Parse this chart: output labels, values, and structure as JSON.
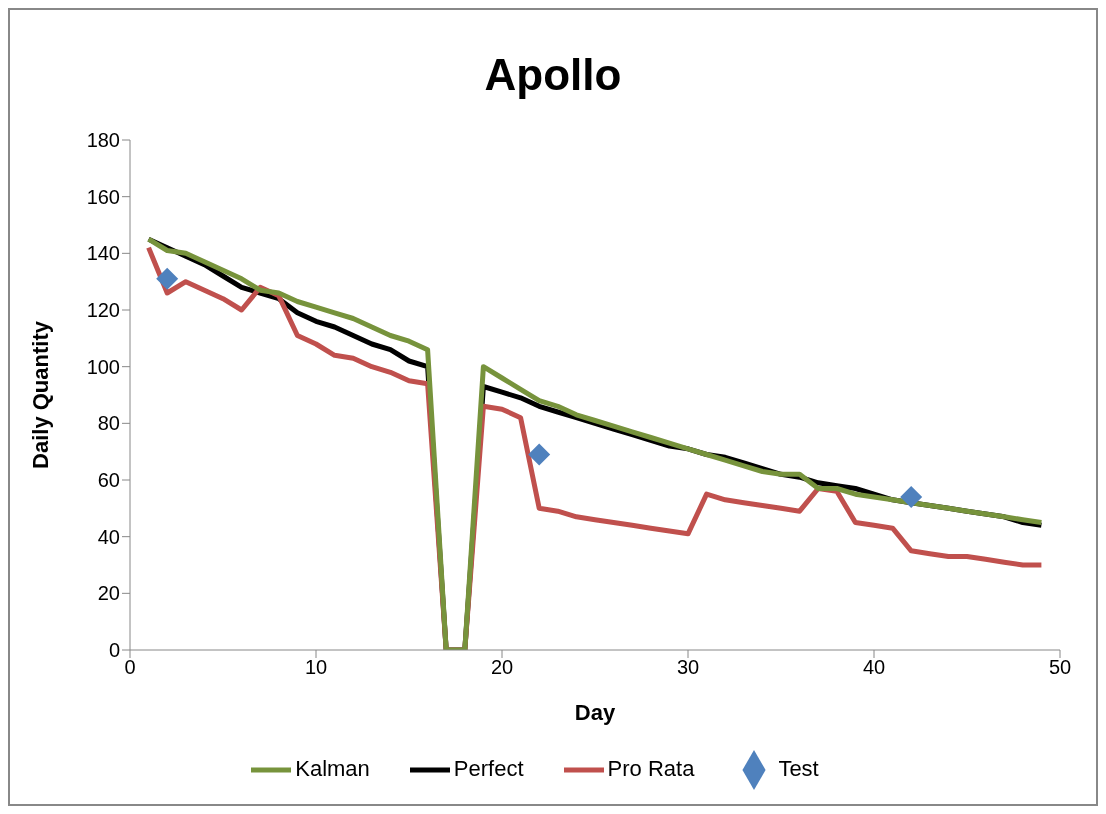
{
  "chart_data": {
    "type": "line",
    "title": "Apollo",
    "xlabel": "Day",
    "ylabel": "Daily Quantity",
    "x": [
      1,
      2,
      3,
      4,
      5,
      6,
      7,
      8,
      9,
      10,
      11,
      12,
      13,
      14,
      15,
      16,
      17,
      18,
      19,
      20,
      21,
      22,
      23,
      24,
      25,
      26,
      27,
      28,
      29,
      30,
      31,
      32,
      33,
      34,
      35,
      36,
      37,
      38,
      39,
      40,
      41,
      42,
      43,
      44,
      45,
      46,
      47,
      48,
      49
    ],
    "series": [
      {
        "name": "Perfect",
        "color": "#000000",
        "values": [
          145,
          142,
          139,
          136,
          132,
          128,
          126,
          124,
          119,
          116,
          114,
          111,
          108,
          106,
          102,
          100,
          0,
          0,
          93,
          91,
          89,
          86,
          84,
          82,
          80,
          78,
          76,
          74,
          72,
          71,
          69,
          68,
          66,
          64,
          62,
          61,
          59,
          58,
          57,
          55,
          53,
          52,
          51,
          50,
          49,
          48,
          47,
          45,
          44
        ]
      },
      {
        "name": "Pro Rata",
        "color": "#c0504d",
        "values": [
          142,
          126,
          130,
          127,
          124,
          120,
          128,
          125,
          111,
          108,
          104,
          103,
          100,
          98,
          95,
          94,
          0,
          0,
          86,
          85,
          82,
          50,
          49,
          47,
          46,
          45,
          44,
          43,
          42,
          41,
          55,
          53,
          52,
          51,
          50,
          49,
          57,
          56,
          45,
          44,
          43,
          35,
          34,
          33,
          33,
          32,
          31,
          30,
          30
        ]
      },
      {
        "name": "Kalman",
        "color": "#77933c",
        "values": [
          145,
          141,
          140,
          137,
          134,
          131,
          127,
          126,
          123,
          121,
          119,
          117,
          114,
          111,
          109,
          106,
          0,
          0,
          100,
          96,
          92,
          88,
          86,
          83,
          81,
          79,
          77,
          75,
          73,
          71,
          69,
          67,
          65,
          63,
          62,
          62,
          57,
          57,
          55,
          54,
          53,
          52,
          51,
          50,
          49,
          48,
          47,
          46,
          45
        ]
      },
      {
        "name": "Test",
        "type": "scatter",
        "marker": "diamond",
        "color": "#4f81bd",
        "x": [
          2,
          22,
          42
        ],
        "values": [
          131,
          69,
          54
        ]
      }
    ],
    "marker": "none",
    "line_style": "solid",
    "xlim": [
      0,
      50
    ],
    "xticks": [
      0,
      10,
      20,
      30,
      40,
      50
    ],
    "ylim": [
      0,
      180
    ],
    "yticks": [
      0,
      20,
      40,
      60,
      80,
      100,
      120,
      140,
      160,
      180
    ],
    "grid": false,
    "legend": "bottom"
  }
}
